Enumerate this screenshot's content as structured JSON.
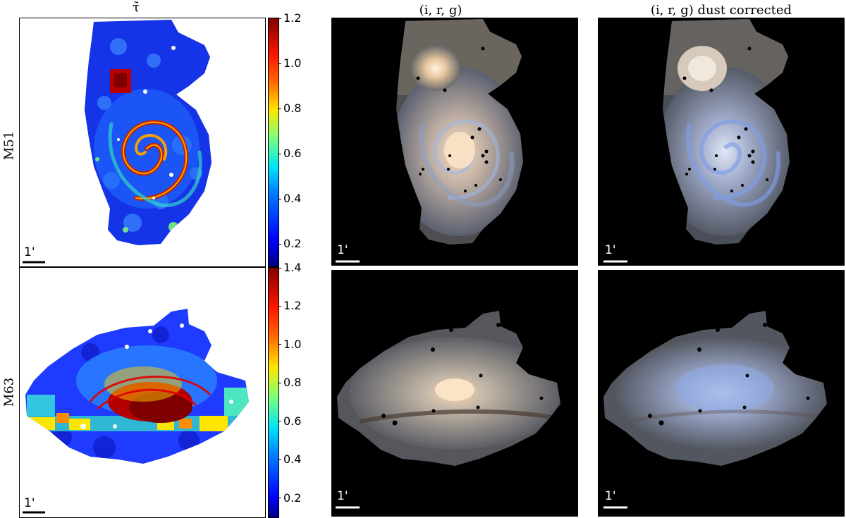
{
  "column_titles": {
    "tau": "τ̃",
    "irg": "(i, r, g)",
    "irg_dust": "(i, r, g) dust corrected"
  },
  "row_labels": {
    "m51": "M51",
    "m63": "M63"
  },
  "scale_bar_label": "1'",
  "colorbars": {
    "m51": {
      "range": [
        0.1,
        1.2
      ],
      "ticks": [
        "1.2",
        "1.0",
        "0.8",
        "0.6",
        "0.4",
        "0.2"
      ],
      "tick_values": [
        1.2,
        1.0,
        0.8,
        0.6,
        0.4,
        0.2
      ]
    },
    "m63": {
      "range": [
        0.1,
        1.4
      ],
      "ticks": [
        "1.4",
        "1.2",
        "1.0",
        "0.8",
        "0.6",
        "0.4",
        "0.2"
      ],
      "tick_values": [
        1.4,
        1.2,
        1.0,
        0.8,
        0.6,
        0.4,
        0.2
      ]
    }
  },
  "colors": {
    "jet_low": "#00007f",
    "jet_high": "#7f0000",
    "sky": "#000000"
  }
}
